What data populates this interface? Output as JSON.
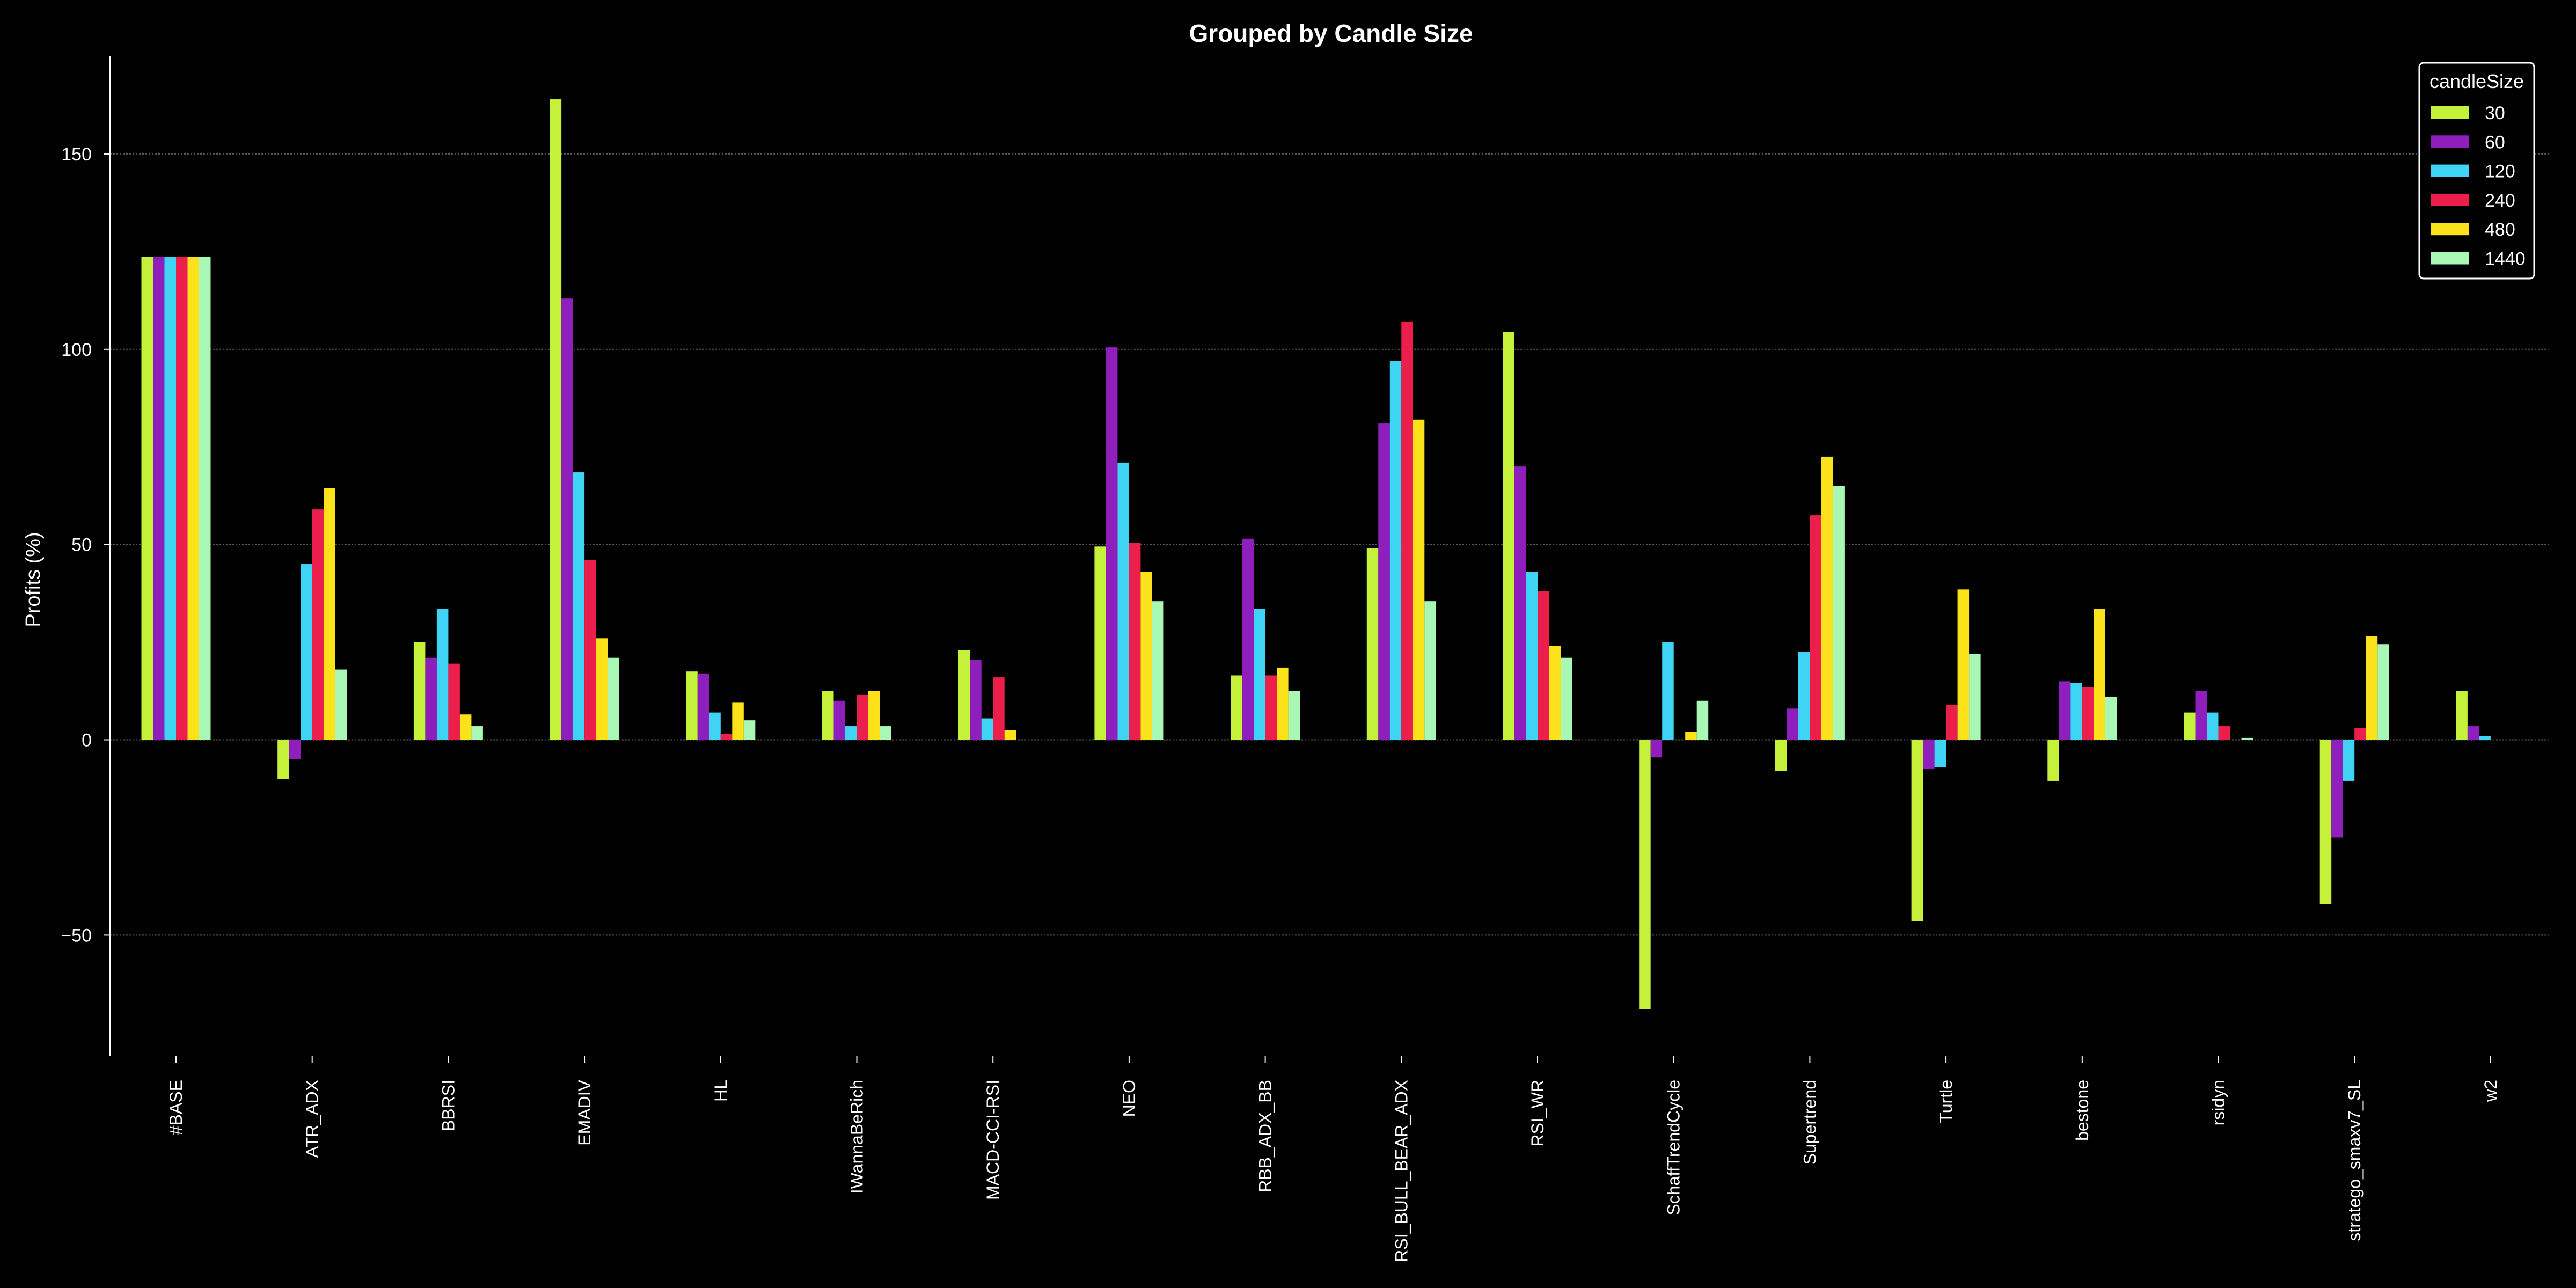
{
  "chart_data": {
    "type": "bar",
    "title": "Grouped by Candle Size",
    "xlabel": "",
    "ylabel": "Profits (%)",
    "ylim": [
      -81,
      175
    ],
    "yticks": [
      -50,
      0,
      50,
      100,
      150
    ],
    "grid": "horizontal dotted",
    "legend": {
      "title": "candleSize",
      "placement": "top-right"
    },
    "categories": [
      "#BASE",
      "ATR_ADX",
      "BBRSI",
      "EMADIV",
      "HL",
      "IWannaBeRich",
      "MACD-CCI-RSI",
      "NEO",
      "RBB_ADX_BB",
      "RSI_BULL_BEAR_ADX",
      "RSI_WR",
      "SchaffTrendCycle",
      "Supertrend",
      "Turtle",
      "bestone",
      "rsidyn",
      "stratego_smaxv7_SL",
      "w2"
    ],
    "series": [
      {
        "name": "30",
        "color": "#c6f13a",
        "values": [
          123.7,
          -10,
          25,
          164,
          17.5,
          12.5,
          23,
          49.5,
          16.5,
          49,
          104.5,
          -69,
          -8,
          -46.5,
          -10.5,
          7,
          -42,
          12.5
        ]
      },
      {
        "name": "60",
        "color": "#8e1fbd",
        "values": [
          123.7,
          -5,
          21,
          113,
          17,
          10,
          20.5,
          100.5,
          51.5,
          81,
          70,
          -4.5,
          8,
          -7.5,
          15,
          12.5,
          -25,
          3.5
        ]
      },
      {
        "name": "120",
        "color": "#3fd4f4",
        "values": [
          123.7,
          45,
          33.5,
          68.5,
          7,
          3.5,
          5.5,
          71,
          33.5,
          97,
          43,
          25,
          22.5,
          -7,
          14.5,
          7,
          -10.5,
          1
        ]
      },
      {
        "name": "240",
        "color": "#eb1e4c",
        "values": [
          123.7,
          59,
          19.5,
          46,
          1.5,
          11.5,
          16,
          50.5,
          16.5,
          107,
          38,
          0,
          57.5,
          9,
          13.5,
          3.5,
          3,
          0
        ]
      },
      {
        "name": "480",
        "color": "#fbe21b",
        "values": [
          123.7,
          64.5,
          6.5,
          26,
          9.5,
          12.5,
          2.5,
          43,
          18.5,
          82,
          24,
          2,
          72.5,
          38.5,
          33.5,
          0,
          26.5,
          0
        ]
      },
      {
        "name": "1440",
        "color": "#a9f7b4",
        "values": [
          123.7,
          18,
          3.5,
          21,
          5,
          3.5,
          0,
          35.5,
          12.5,
          35.5,
          21,
          10,
          65,
          22,
          11,
          0.5,
          24.5,
          0
        ]
      }
    ]
  }
}
